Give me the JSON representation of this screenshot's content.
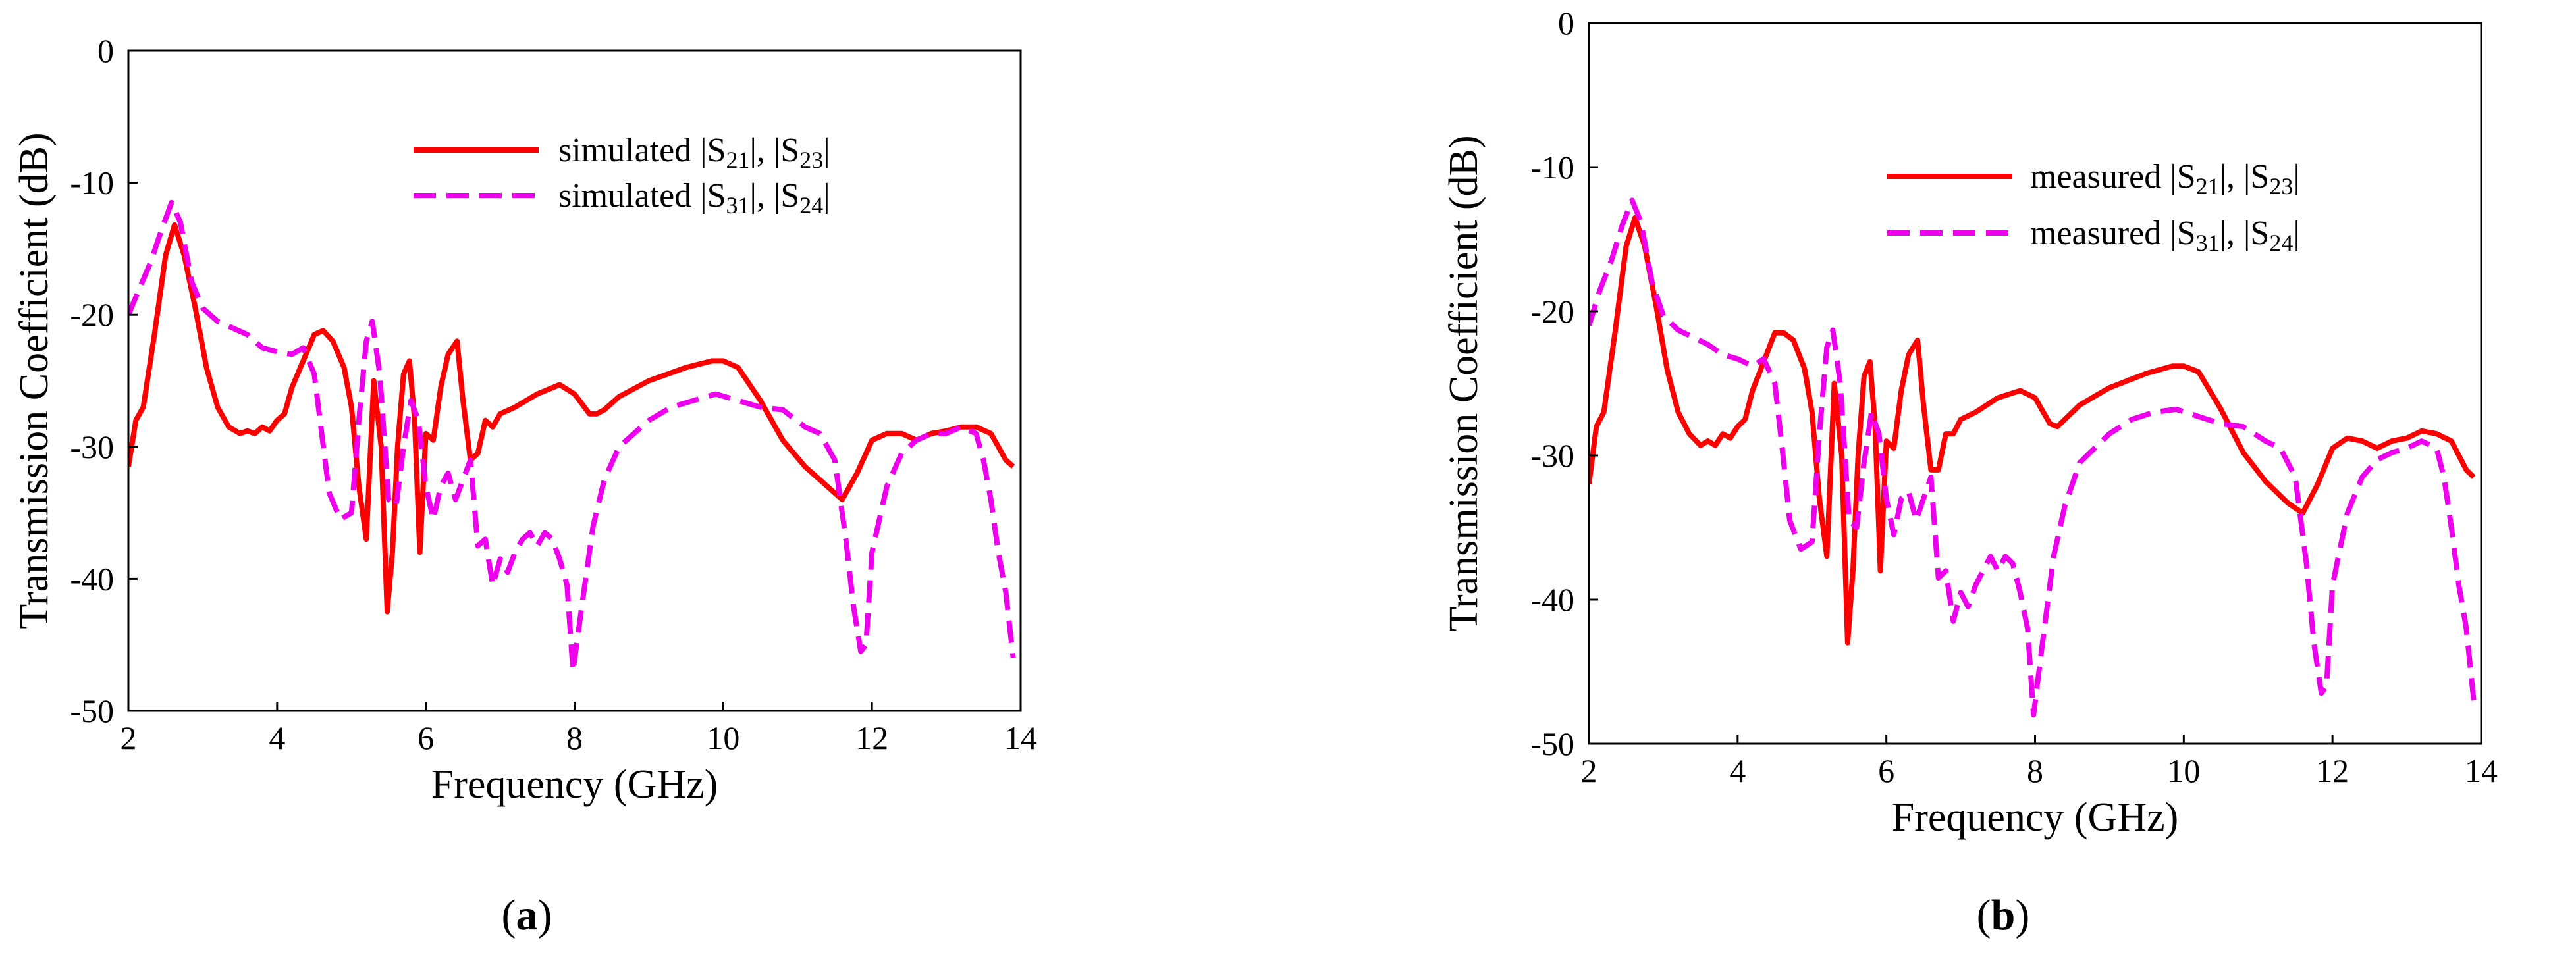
{
  "chart_data": [
    {
      "type": "line",
      "panel_label": "a",
      "xlabel": "Frequency (GHz)",
      "ylabel": "Transmission Coefficient (dB)",
      "xlim": [
        2,
        14
      ],
      "ylim": [
        -50,
        0
      ],
      "xticks": [
        "2",
        "4",
        "6",
        "8",
        "10",
        "12",
        "14"
      ],
      "yticks": [
        "0",
        "-10",
        "-20",
        "-30",
        "-40",
        "-50"
      ],
      "legend_position": "top-right",
      "series": [
        {
          "name": "simulated |S21|, |S23|",
          "legend_prefix": "simulated |S",
          "legend_sub1": "21",
          "legend_mid": "|, |S",
          "legend_sub2": "23",
          "legend_suffix": "|",
          "color": "#ff0000",
          "dash": "solid",
          "x": [
            2.0,
            2.1,
            2.2,
            2.35,
            2.5,
            2.62,
            2.75,
            2.9,
            3.05,
            3.2,
            3.35,
            3.5,
            3.6,
            3.7,
            3.8,
            3.9,
            4.0,
            4.1,
            4.2,
            4.35,
            4.5,
            4.62,
            4.75,
            4.9,
            5.0,
            5.1,
            5.2,
            5.3,
            5.4,
            5.48,
            5.55,
            5.62,
            5.7,
            5.78,
            5.85,
            5.92,
            6.0,
            6.1,
            6.2,
            6.3,
            6.42,
            6.5,
            6.6,
            6.7,
            6.8,
            6.9,
            7.0,
            7.2,
            7.5,
            7.8,
            8.0,
            8.2,
            8.3,
            8.4,
            8.6,
            9.0,
            9.5,
            9.85,
            10.0,
            10.2,
            10.5,
            10.8,
            11.1,
            11.4,
            11.6,
            11.8,
            12.0,
            12.2,
            12.4,
            12.6,
            12.8,
            13.0,
            13.2,
            13.4,
            13.6,
            13.8,
            13.9
          ],
          "values": [
            -31.5,
            -28.0,
            -27.0,
            -21.5,
            -15.5,
            -13.2,
            -15.5,
            -19.5,
            -24.0,
            -27.0,
            -28.5,
            -29.0,
            -28.8,
            -29.0,
            -28.5,
            -28.8,
            -28.0,
            -27.5,
            -25.5,
            -23.5,
            -21.5,
            -21.2,
            -22.0,
            -24.0,
            -27.0,
            -33.0,
            -37.0,
            -25.0,
            -30.0,
            -42.5,
            -38.0,
            -30.0,
            -24.5,
            -23.5,
            -28.0,
            -38.0,
            -29.0,
            -29.5,
            -25.5,
            -23.0,
            -22.0,
            -26.5,
            -31.0,
            -30.5,
            -28.0,
            -28.5,
            -27.5,
            -27.0,
            -26.0,
            -25.3,
            -26.0,
            -27.5,
            -27.5,
            -27.2,
            -26.2,
            -25.0,
            -24.0,
            -23.5,
            -23.5,
            -24.0,
            -26.5,
            -29.5,
            -31.5,
            -33.0,
            -34.0,
            -32.0,
            -29.5,
            -29.0,
            -29.0,
            -29.5,
            -29.0,
            -28.8,
            -28.5,
            -28.5,
            -29.0,
            -31.0,
            -31.5
          ]
        },
        {
          "name": "simulated |S31|, |S24|",
          "legend_prefix": "simulated |S",
          "legend_sub1": "31",
          "legend_mid": "|, |S",
          "legend_sub2": "24",
          "legend_suffix": "|",
          "color": "#ee00ee",
          "dash": "dashed",
          "x": [
            2.0,
            2.15,
            2.3,
            2.45,
            2.58,
            2.7,
            2.85,
            3.0,
            3.2,
            3.4,
            3.6,
            3.8,
            4.0,
            4.2,
            4.35,
            4.5,
            4.6,
            4.7,
            4.85,
            5.0,
            5.1,
            5.2,
            5.28,
            5.38,
            5.5,
            5.6,
            5.7,
            5.8,
            5.9,
            6.0,
            6.1,
            6.2,
            6.3,
            6.4,
            6.5,
            6.6,
            6.7,
            6.8,
            6.9,
            7.0,
            7.1,
            7.2,
            7.3,
            7.4,
            7.5,
            7.6,
            7.7,
            7.8,
            7.9,
            7.98,
            8.1,
            8.25,
            8.4,
            8.6,
            8.8,
            9.0,
            9.3,
            9.6,
            9.9,
            10.2,
            10.5,
            10.8,
            11.1,
            11.3,
            11.5,
            11.65,
            11.75,
            11.85,
            11.92,
            12.0,
            12.2,
            12.4,
            12.6,
            12.8,
            13.0,
            13.2,
            13.4,
            13.5,
            13.6,
            13.7,
            13.8,
            13.9
          ],
          "values": [
            -20.0,
            -18.0,
            -16.0,
            -13.5,
            -11.5,
            -13.0,
            -17.5,
            -19.5,
            -20.5,
            -21.0,
            -21.5,
            -22.5,
            -22.8,
            -23.0,
            -22.5,
            -24.5,
            -29.0,
            -33.5,
            -35.5,
            -35.0,
            -28.0,
            -22.0,
            -20.5,
            -24.5,
            -34.0,
            -34.5,
            -30.0,
            -26.5,
            -28.0,
            -33.0,
            -35.5,
            -33.0,
            -32.0,
            -34.0,
            -32.5,
            -31.0,
            -37.5,
            -37.0,
            -40.5,
            -38.5,
            -39.5,
            -38.0,
            -37.0,
            -36.5,
            -37.5,
            -36.5,
            -37.0,
            -38.5,
            -40.5,
            -47.0,
            -42.0,
            -36.0,
            -32.5,
            -30.0,
            -29.0,
            -28.0,
            -27.0,
            -26.5,
            -26.0,
            -26.5,
            -27.0,
            -27.2,
            -28.5,
            -29.0,
            -31.0,
            -37.0,
            -42.0,
            -45.5,
            -45.0,
            -38.0,
            -33.0,
            -30.5,
            -29.5,
            -29.0,
            -29.0,
            -28.5,
            -29.0,
            -31.0,
            -34.0,
            -38.0,
            -41.0,
            -46.0
          ]
        }
      ]
    },
    {
      "type": "line",
      "panel_label": "b",
      "xlabel": "Frequency (GHz)",
      "ylabel": "Transmission Coefficient (dB)",
      "xlim": [
        2,
        14
      ],
      "ylim": [
        -50,
        0
      ],
      "xticks": [
        "2",
        "4",
        "6",
        "8",
        "10",
        "12",
        "14"
      ],
      "yticks": [
        "0",
        "-10",
        "-20",
        "-30",
        "-40",
        "-50"
      ],
      "legend_position": "top-right",
      "series": [
        {
          "name": "measured |S21|, |S23|",
          "legend_prefix": "measured |S",
          "legend_sub1": "21",
          "legend_mid": "|, |S",
          "legend_sub2": "23",
          "legend_suffix": "|",
          "color": "#ff0000",
          "dash": "solid",
          "x": [
            2.0,
            2.1,
            2.2,
            2.35,
            2.5,
            2.62,
            2.75,
            2.9,
            3.05,
            3.2,
            3.35,
            3.5,
            3.6,
            3.7,
            3.8,
            3.9,
            4.0,
            4.1,
            4.2,
            4.35,
            4.5,
            4.62,
            4.75,
            4.9,
            5.0,
            5.1,
            5.2,
            5.3,
            5.4,
            5.48,
            5.55,
            5.62,
            5.7,
            5.78,
            5.85,
            5.92,
            6.0,
            6.1,
            6.2,
            6.3,
            6.42,
            6.5,
            6.6,
            6.7,
            6.8,
            6.9,
            7.0,
            7.2,
            7.5,
            7.8,
            8.0,
            8.2,
            8.3,
            8.4,
            8.6,
            9.0,
            9.5,
            9.85,
            10.0,
            10.2,
            10.5,
            10.8,
            11.1,
            11.4,
            11.6,
            11.8,
            12.0,
            12.2,
            12.4,
            12.6,
            12.8,
            13.0,
            13.2,
            13.4,
            13.6,
            13.8,
            13.9
          ],
          "values": [
            -32.0,
            -28.0,
            -27.0,
            -21.5,
            -15.5,
            -13.5,
            -15.5,
            -19.5,
            -24.0,
            -27.0,
            -28.5,
            -29.3,
            -29.0,
            -29.3,
            -28.5,
            -28.8,
            -28.0,
            -27.5,
            -25.5,
            -23.5,
            -21.5,
            -21.5,
            -22.0,
            -24.0,
            -27.0,
            -33.0,
            -37.0,
            -25.0,
            -30.0,
            -43.0,
            -38.0,
            -30.0,
            -24.5,
            -23.5,
            -28.0,
            -38.0,
            -29.0,
            -29.5,
            -25.5,
            -23.0,
            -22.0,
            -26.5,
            -31.0,
            -31.0,
            -28.5,
            -28.5,
            -27.5,
            -27.0,
            -26.0,
            -25.5,
            -26.0,
            -27.8,
            -28.0,
            -27.5,
            -26.5,
            -25.3,
            -24.3,
            -23.8,
            -23.8,
            -24.2,
            -26.8,
            -29.8,
            -31.8,
            -33.3,
            -34.0,
            -32.0,
            -29.5,
            -28.8,
            -29.0,
            -29.5,
            -29.0,
            -28.8,
            -28.3,
            -28.5,
            -29.0,
            -31.0,
            -31.5
          ]
        },
        {
          "name": "measured  |S31|, |S24|",
          "legend_prefix": "measured  |S",
          "legend_sub1": "31",
          "legend_mid": "|, |S",
          "legend_sub2": "24",
          "legend_suffix": "|",
          "color": "#ee00ee",
          "dash": "dashed",
          "x": [
            2.0,
            2.15,
            2.3,
            2.45,
            2.58,
            2.7,
            2.85,
            3.0,
            3.2,
            3.4,
            3.6,
            3.8,
            4.0,
            4.2,
            4.35,
            4.5,
            4.6,
            4.7,
            4.85,
            5.0,
            5.1,
            5.2,
            5.28,
            5.38,
            5.5,
            5.6,
            5.7,
            5.8,
            5.9,
            6.0,
            6.1,
            6.2,
            6.3,
            6.4,
            6.5,
            6.6,
            6.7,
            6.8,
            6.9,
            7.0,
            7.1,
            7.2,
            7.3,
            7.4,
            7.5,
            7.6,
            7.7,
            7.8,
            7.9,
            7.98,
            8.1,
            8.25,
            8.4,
            8.6,
            8.8,
            9.0,
            9.3,
            9.6,
            9.9,
            10.2,
            10.5,
            10.8,
            11.1,
            11.3,
            11.5,
            11.65,
            11.75,
            11.85,
            11.92,
            12.0,
            12.2,
            12.4,
            12.6,
            12.8,
            13.0,
            13.2,
            13.4,
            13.5,
            13.6,
            13.7,
            13.8,
            13.9
          ],
          "values": [
            -21.0,
            -18.5,
            -16.5,
            -14.0,
            -12.3,
            -13.8,
            -18.0,
            -20.3,
            -21.3,
            -21.8,
            -22.3,
            -23.0,
            -23.3,
            -23.8,
            -23.3,
            -25.0,
            -29.5,
            -34.5,
            -36.5,
            -36.0,
            -28.5,
            -22.5,
            -21.3,
            -25.0,
            -34.5,
            -35.0,
            -30.5,
            -27.0,
            -28.5,
            -33.0,
            -35.5,
            -33.0,
            -32.5,
            -34.5,
            -33.0,
            -31.5,
            -38.5,
            -38.0,
            -41.5,
            -39.5,
            -40.5,
            -39.0,
            -38.0,
            -37.0,
            -38.0,
            -37.0,
            -37.5,
            -39.5,
            -42.0,
            -48.0,
            -43.0,
            -37.0,
            -33.5,
            -30.5,
            -29.5,
            -28.5,
            -27.5,
            -27.0,
            -26.8,
            -27.3,
            -27.8,
            -28.0,
            -29.0,
            -29.5,
            -31.5,
            -37.5,
            -43.0,
            -46.5,
            -46.0,
            -39.0,
            -34.0,
            -31.5,
            -30.3,
            -29.8,
            -29.5,
            -29.0,
            -29.5,
            -31.5,
            -35.0,
            -39.0,
            -42.0,
            -47.0
          ]
        }
      ]
    }
  ]
}
